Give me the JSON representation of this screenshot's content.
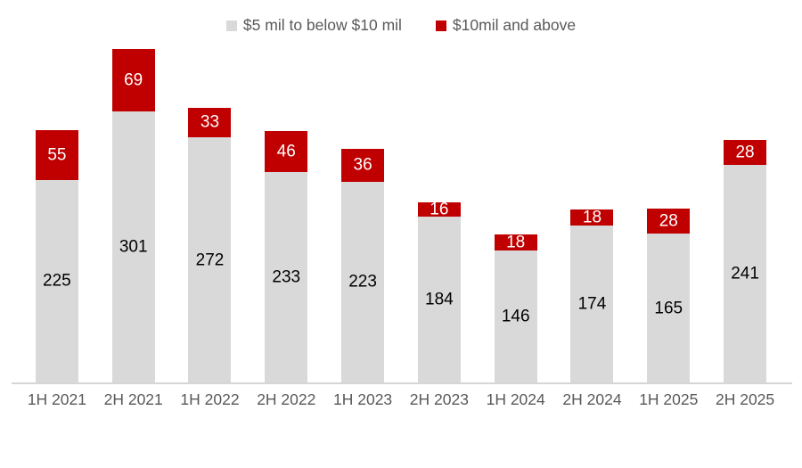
{
  "chart_data": {
    "type": "bar",
    "stacked": true,
    "title": "",
    "xlabel": "",
    "ylabel": "",
    "grid": false,
    "legend_position": "top",
    "ylim": [
      0,
      370
    ],
    "categories": [
      "1H 2021",
      "2H 2021",
      "1H 2022",
      "2H 2022",
      "1H 2023",
      "2H 2023",
      "1H 2024",
      "2H 2024",
      "1H 2025",
      "2H 2025"
    ],
    "series": [
      {
        "name": "$5 mil to below $10 mil",
        "color": "#d9d9d9",
        "label_color": "#000000",
        "values": [
          225,
          301,
          272,
          233,
          223,
          184,
          146,
          174,
          165,
          241
        ]
      },
      {
        "name": "$10mil and above",
        "color": "#c00000",
        "label_color": "#ffffff",
        "values": [
          55,
          69,
          33,
          46,
          36,
          16,
          18,
          18,
          28,
          28
        ]
      }
    ]
  },
  "colors": {
    "axis_line": "#d6d6d6",
    "axis_text": "#595959",
    "background": "#ffffff"
  }
}
